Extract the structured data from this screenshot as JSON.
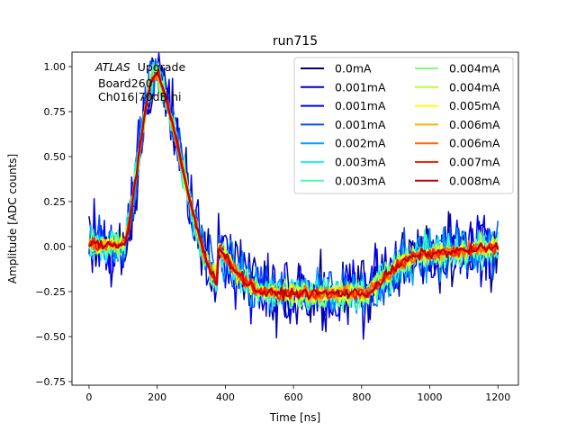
{
  "chart_data": {
    "type": "line",
    "title": "run715",
    "xlabel": "Time [ns]",
    "ylabel": "Amplitude [ADC counts]",
    "xlim": [
      -50,
      1260
    ],
    "ylim": [
      -0.77,
      1.08
    ],
    "xticks": [
      0,
      200,
      400,
      600,
      800,
      1000,
      1200
    ],
    "xtick_labels": [
      "0",
      "200",
      "400",
      "600",
      "800",
      "1000",
      "1200"
    ],
    "yticks": [
      -0.75,
      -0.5,
      -0.25,
      0.0,
      0.25,
      0.5,
      0.75,
      1.0
    ],
    "ytick_labels": [
      "−0.75",
      "−0.50",
      "−0.25",
      "0.00",
      "0.25",
      "0.50",
      "0.75",
      "1.00"
    ],
    "grid": false,
    "legend_position": "top-right",
    "legend_columns": 2,
    "annotation": {
      "experiment": "ATLAS",
      "tag": "Upgrade",
      "line2": "Board260",
      "line3": "Ch016|70dB hi"
    },
    "waveform": {
      "t_start": 0,
      "t_end": 1200,
      "n_points": 241,
      "peak_time": 200,
      "peak_value": 0.97,
      "undershoot_value": -0.26
    },
    "series": [
      {
        "name": "0.0mA",
        "color": "#00007f",
        "noise": 0.2
      },
      {
        "name": "0.001mA",
        "color": "#0000c8",
        "noise": 0.18
      },
      {
        "name": "0.001mA",
        "color": "#0000ff",
        "noise": 0.16
      },
      {
        "name": "0.001mA",
        "color": "#0050ff",
        "noise": 0.14
      },
      {
        "name": "0.002mA",
        "color": "#00a4ff",
        "noise": 0.12
      },
      {
        "name": "0.003mA",
        "color": "#1ff8de",
        "noise": 0.1
      },
      {
        "name": "0.003mA",
        "color": "#4dffa9",
        "noise": 0.085
      },
      {
        "name": "0.004mA",
        "color": "#83ff73",
        "noise": 0.07
      },
      {
        "name": "0.004mA",
        "color": "#b5ff41",
        "noise": 0.06
      },
      {
        "name": "0.005mA",
        "color": "#ffff00",
        "noise": 0.05
      },
      {
        "name": "0.006mA",
        "color": "#ffb100",
        "noise": 0.04
      },
      {
        "name": "0.006mA",
        "color": "#ff6800",
        "noise": 0.035
      },
      {
        "name": "0.007mA",
        "color": "#ff2200",
        "noise": 0.03
      },
      {
        "name": "0.008mA",
        "color": "#c40000",
        "noise": 0.025
      }
    ]
  }
}
